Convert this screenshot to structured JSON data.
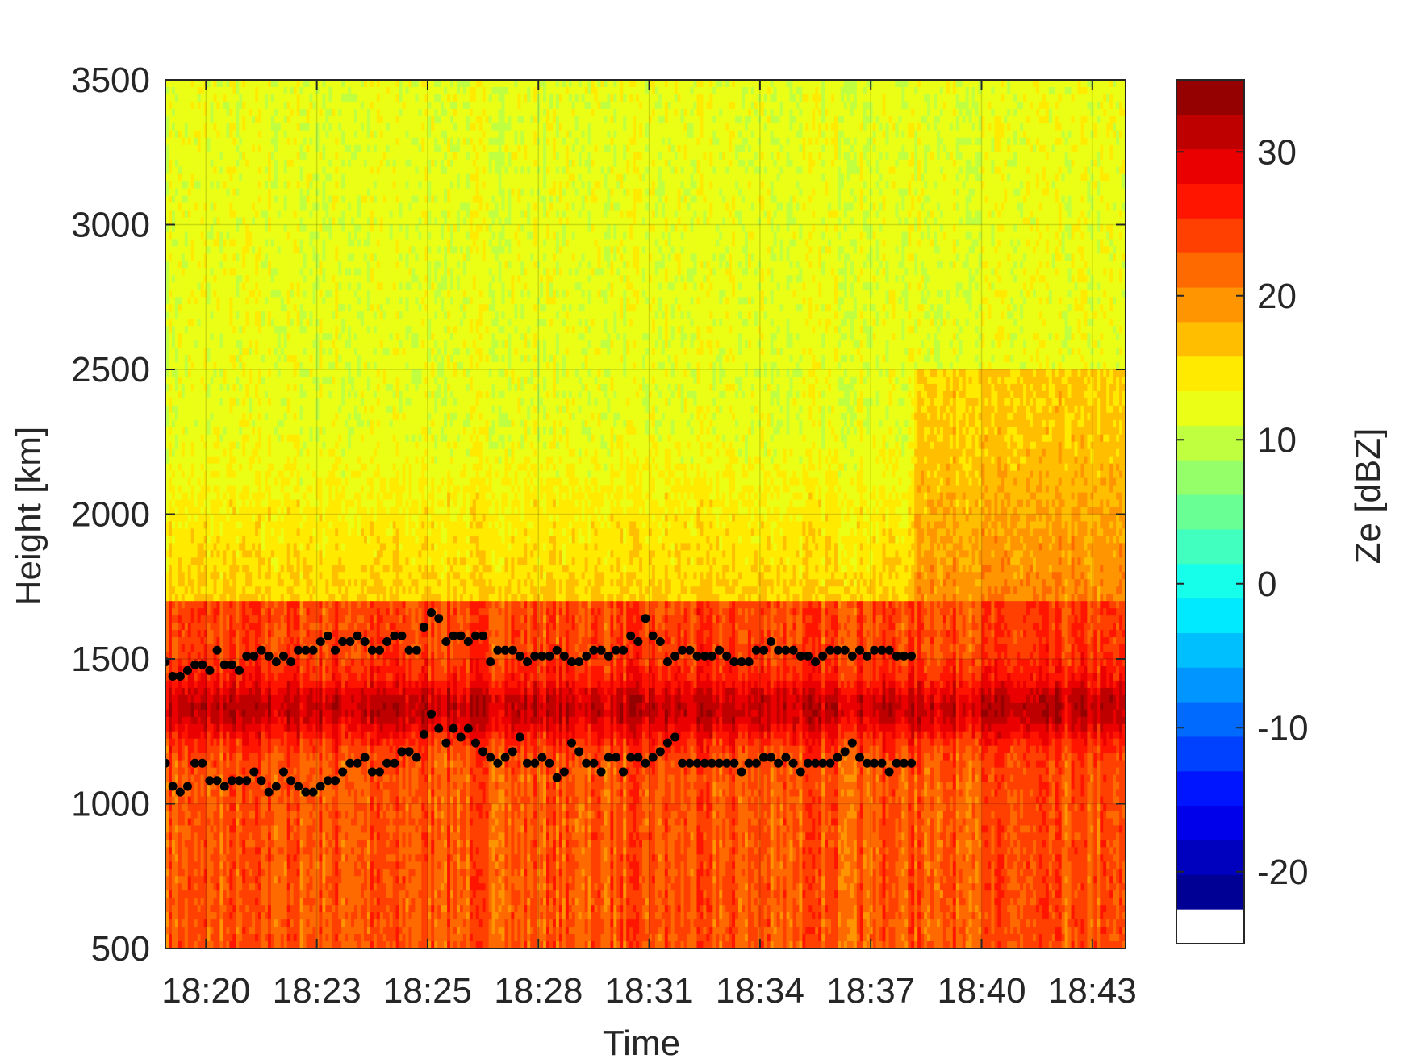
{
  "chart_data": {
    "type": "heatmap",
    "title": "",
    "xlabel": "Time",
    "ylabel": "Height [km]",
    "x_tick_labels": [
      "18:20",
      "18:23",
      "18:25",
      "18:28",
      "18:31",
      "18:34",
      "18:37",
      "18:40",
      "18:43"
    ],
    "x_range_minutes": [
      1099.0,
      1125.0
    ],
    "x_tick_values_minutes": [
      1100.1,
      1103.1,
      1106.1,
      1109.1,
      1112.1,
      1115.1,
      1118.1,
      1121.1,
      1124.1
    ],
    "y_tick_labels": [
      "500",
      "1000",
      "1500",
      "2000",
      "2500",
      "3000",
      "3500"
    ],
    "ylim": [
      500,
      3500
    ],
    "grid": true,
    "colorbar": {
      "label": "Ze [dBZ]",
      "range": [
        -25,
        35
      ],
      "tick_labels": [
        "-20",
        "-10",
        "0",
        "10",
        "20",
        "30"
      ],
      "tick_values": [
        -20,
        -10,
        0,
        10,
        20,
        30
      ],
      "levels": 25,
      "lowest_bin_color": "#ffffff",
      "colormap": "jet"
    },
    "field_description_values": {
      "upper_dBZ": 12,
      "mid_dBZ": 16,
      "band_dBZ": 31,
      "lower_dBZ": 23,
      "band_height_m": 1330
    },
    "markers": {
      "color": "#000000",
      "series": [
        {
          "x": [
            1099.0,
            1099.2,
            1099.4,
            1099.6,
            1099.8,
            1100.0,
            1100.2,
            1100.4,
            1100.6,
            1100.8,
            1101.0,
            1101.2,
            1101.4,
            1101.6,
            1101.8,
            1102.0,
            1102.2,
            1102.4,
            1102.6,
            1102.8,
            1103.0,
            1103.2,
            1103.4,
            1103.6,
            1103.8,
            1104.0,
            1104.2,
            1104.4,
            1104.6,
            1104.8,
            1105.0,
            1105.2,
            1105.4,
            1105.6,
            1105.8,
            1106.0,
            1106.2,
            1106.4,
            1106.6,
            1106.8,
            1107.0,
            1107.2,
            1107.4,
            1107.6,
            1107.8,
            1108.0,
            1108.2,
            1108.4,
            1108.6,
            1108.8,
            1109.0,
            1109.2,
            1109.4,
            1109.6,
            1109.8,
            1110.0,
            1110.2,
            1110.4,
            1110.6,
            1110.8,
            1111.0,
            1111.2,
            1111.4,
            1111.6,
            1111.8,
            1112.0,
            1112.2,
            1112.4,
            1112.6,
            1112.8,
            1113.0,
            1113.2,
            1113.4,
            1113.6,
            1113.8,
            1114.0,
            1114.2,
            1114.4,
            1114.6,
            1114.8,
            1115.0,
            1115.2,
            1115.4,
            1115.6,
            1115.8,
            1116.0,
            1116.2,
            1116.4,
            1116.6,
            1116.8,
            1117.0,
            1117.2,
            1117.4,
            1117.6,
            1117.8,
            1118.0,
            1118.2,
            1118.4,
            1118.6,
            1118.8,
            1119.0,
            1119.2
          ],
          "y": [
            1490,
            1440,
            1440,
            1460,
            1480,
            1480,
            1460,
            1530,
            1480,
            1480,
            1460,
            1510,
            1510,
            1530,
            1510,
            1490,
            1510,
            1490,
            1530,
            1530,
            1530,
            1560,
            1580,
            1530,
            1560,
            1560,
            1580,
            1560,
            1530,
            1530,
            1560,
            1580,
            1580,
            1530,
            1530,
            1610,
            1660,
            1640,
            1560,
            1580,
            1580,
            1560,
            1580,
            1580,
            1490,
            1530,
            1530,
            1530,
            1510,
            1490,
            1510,
            1510,
            1510,
            1530,
            1510,
            1490,
            1490,
            1510,
            1530,
            1530,
            1510,
            1530,
            1530,
            1580,
            1560,
            1640,
            1580,
            1560,
            1490,
            1510,
            1530,
            1530,
            1510,
            1510,
            1510,
            1530,
            1510,
            1490,
            1490,
            1490,
            1530,
            1530,
            1560,
            1530,
            1530,
            1530,
            1510,
            1510,
            1490,
            1510,
            1530,
            1530,
            1530,
            1510,
            1530,
            1510,
            1530,
            1530,
            1530,
            1510,
            1510,
            1510
          ]
        },
        {
          "x": [
            1099.0,
            1099.2,
            1099.4,
            1099.6,
            1099.8,
            1100.0,
            1100.2,
            1100.4,
            1100.6,
            1100.8,
            1101.0,
            1101.2,
            1101.4,
            1101.6,
            1101.8,
            1102.0,
            1102.2,
            1102.4,
            1102.6,
            1102.8,
            1103.0,
            1103.2,
            1103.4,
            1103.6,
            1103.8,
            1104.0,
            1104.2,
            1104.4,
            1104.6,
            1104.8,
            1105.0,
            1105.2,
            1105.4,
            1105.6,
            1105.8,
            1106.0,
            1106.2,
            1106.4,
            1106.6,
            1106.8,
            1107.0,
            1107.2,
            1107.4,
            1107.6,
            1107.8,
            1108.0,
            1108.2,
            1108.4,
            1108.6,
            1108.8,
            1109.0,
            1109.2,
            1109.4,
            1109.6,
            1109.8,
            1110.0,
            1110.2,
            1110.4,
            1110.6,
            1110.8,
            1111.0,
            1111.2,
            1111.4,
            1111.6,
            1111.8,
            1112.0,
            1112.2,
            1112.4,
            1112.6,
            1112.8,
            1113.0,
            1113.2,
            1113.4,
            1113.6,
            1113.8,
            1114.0,
            1114.2,
            1114.4,
            1114.6,
            1114.8,
            1115.0,
            1115.2,
            1115.4,
            1115.6,
            1115.8,
            1116.0,
            1116.2,
            1116.4,
            1116.6,
            1116.8,
            1117.0,
            1117.2,
            1117.4,
            1117.6,
            1117.8,
            1118.0,
            1118.2,
            1118.4,
            1118.6,
            1118.8,
            1119.0,
            1119.2
          ],
          "y": [
            1140,
            1060,
            1040,
            1060,
            1140,
            1140,
            1080,
            1080,
            1060,
            1080,
            1080,
            1080,
            1110,
            1080,
            1040,
            1060,
            1110,
            1080,
            1060,
            1040,
            1040,
            1060,
            1080,
            1080,
            1110,
            1140,
            1140,
            1160,
            1110,
            1110,
            1140,
            1140,
            1180,
            1180,
            1160,
            1240,
            1310,
            1260,
            1210,
            1260,
            1230,
            1260,
            1210,
            1180,
            1160,
            1140,
            1160,
            1180,
            1230,
            1140,
            1140,
            1160,
            1140,
            1090,
            1110,
            1210,
            1180,
            1140,
            1140,
            1110,
            1160,
            1160,
            1110,
            1160,
            1160,
            1140,
            1160,
            1180,
            1210,
            1230,
            1140,
            1140,
            1140,
            1140,
            1140,
            1140,
            1140,
            1140,
            1110,
            1140,
            1140,
            1160,
            1160,
            1140,
            1160,
            1140,
            1110,
            1140,
            1140,
            1140,
            1140,
            1160,
            1180,
            1210,
            1160,
            1140,
            1140,
            1140,
            1110,
            1140,
            1140,
            1140
          ]
        }
      ]
    }
  }
}
